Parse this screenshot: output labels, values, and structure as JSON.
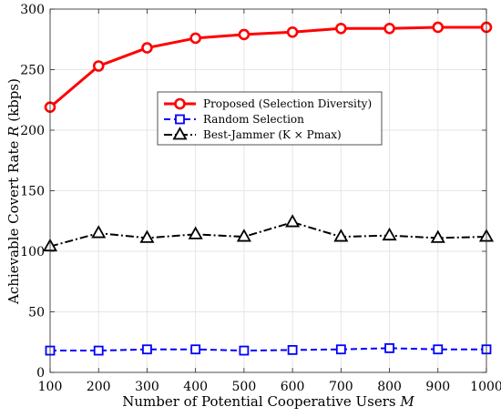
{
  "chart_data": {
    "type": "line",
    "x": [
      100,
      200,
      300,
      400,
      500,
      600,
      700,
      800,
      900,
      1000
    ],
    "xlabel": "Number of Potential Cooperative Users M",
    "ylabel": "Achievable Covert Rate R (kbps)",
    "xlim": [
      100,
      1000
    ],
    "ylim": [
      0,
      300
    ],
    "xticks": [
      100,
      200,
      300,
      400,
      500,
      600,
      700,
      800,
      900,
      1000
    ],
    "yticks": [
      0,
      50,
      100,
      150,
      200,
      250,
      300
    ],
    "grid": true,
    "legend_position": "upper-center",
    "series": [
      {
        "name": "Proposed (Selection Diversity)",
        "values": [
          219,
          253,
          268,
          276,
          279,
          281,
          284,
          284,
          285,
          285
        ],
        "color": "#ff0000",
        "line_style": "solid",
        "marker": "circle"
      },
      {
        "name": "Random Selection",
        "values": [
          18,
          18,
          19,
          19,
          18,
          18.5,
          19,
          20,
          19,
          19
        ],
        "color": "#0000ff",
        "line_style": "dashed",
        "marker": "square"
      },
      {
        "name": "Best-Jammer (K × Pmax)",
        "values": [
          104,
          115,
          111,
          114,
          112,
          124,
          112,
          113,
          111,
          112
        ],
        "color": "#000000",
        "line_style": "dashdot",
        "marker": "triangle"
      }
    ]
  }
}
